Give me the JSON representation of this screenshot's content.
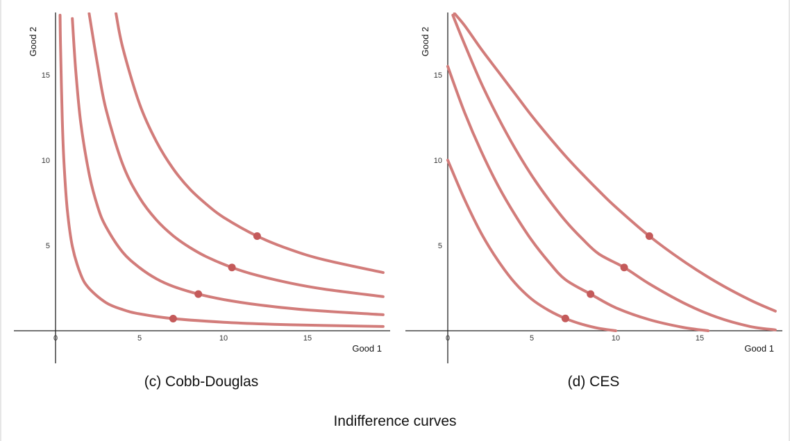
{
  "figure": {
    "caption": "Indifference curves"
  },
  "colors": {
    "curve": "#d27c7a",
    "point": "#c45a5a",
    "axis": "#222222"
  },
  "chart_data": [
    {
      "type": "line",
      "subcaption": "(c) Cobb-Douglas",
      "xlabel": "Good 1",
      "ylabel": "Good 2",
      "xlim": [
        -2.5,
        19.5
      ],
      "ylim": [
        -2,
        18.5
      ],
      "xticks": [
        0,
        5,
        10,
        15
      ],
      "yticks": [
        5,
        10,
        15
      ],
      "xtick_labels": [
        "0",
        "5",
        "10",
        "15"
      ],
      "ytick_labels": [
        "5",
        "10",
        "15"
      ],
      "series": [
        {
          "points": [
            [
              0.27,
              18.5
            ],
            [
              0.3,
              16.5
            ],
            [
              0.4,
              12.4
            ],
            [
              0.5,
              9.9
            ],
            [
              0.7,
              7.1
            ],
            [
              1,
              4.95
            ],
            [
              1.5,
              3.3
            ],
            [
              2,
              2.48
            ],
            [
              3,
              1.65
            ],
            [
              4,
              1.24
            ],
            [
              5,
              0.99
            ],
            [
              7,
              0.71
            ],
            [
              10,
              0.5
            ],
            [
              13,
              0.38
            ],
            [
              16,
              0.31
            ],
            [
              19.5,
              0.25
            ]
          ],
          "marker": [
            7,
            0.71
          ]
        },
        {
          "points": [
            [
              1,
              18.3
            ],
            [
              1.2,
              15.3
            ],
            [
              1.5,
              12.2
            ],
            [
              2,
              9.2
            ],
            [
              2.5,
              7.3
            ],
            [
              3,
              6.1
            ],
            [
              4,
              4.6
            ],
            [
              5,
              3.7
            ],
            [
              6,
              3.05
            ],
            [
              7,
              2.6
            ],
            [
              8.5,
              2.15
            ],
            [
              10,
              1.83
            ],
            [
              12,
              1.53
            ],
            [
              15,
              1.22
            ],
            [
              19.5,
              0.94
            ]
          ],
          "marker": [
            8.5,
            2.15
          ]
        },
        {
          "points": [
            [
              2,
              18.6
            ],
            [
              2.5,
              15.6
            ],
            [
              3,
              13
            ],
            [
              4,
              9.75
            ],
            [
              5,
              7.8
            ],
            [
              6,
              6.5
            ],
            [
              7,
              5.57
            ],
            [
              8,
              4.88
            ],
            [
              9,
              4.33
            ],
            [
              10.5,
              3.71
            ],
            [
              12,
              3.25
            ],
            [
              14,
              2.79
            ],
            [
              16,
              2.44
            ],
            [
              19.5,
              2.0
            ]
          ],
          "marker": [
            10.5,
            3.71
          ]
        },
        {
          "points": [
            [
              3.6,
              18.6
            ],
            [
              4,
              16.6
            ],
            [
              5,
              13.3
            ],
            [
              6,
              11.1
            ],
            [
              7,
              9.5
            ],
            [
              8,
              8.3
            ],
            [
              9,
              7.4
            ],
            [
              10,
              6.65
            ],
            [
              12,
              5.55
            ],
            [
              14,
              4.75
            ],
            [
              16,
              4.16
            ],
            [
              19.5,
              3.41
            ]
          ],
          "marker": [
            12,
            5.55
          ]
        }
      ]
    },
    {
      "type": "line",
      "subcaption": "(d) CES",
      "xlabel": "Good 1",
      "ylabel": "Good 2",
      "xlim": [
        -2.5,
        19.5
      ],
      "ylim": [
        -2,
        18.5
      ],
      "xticks": [
        0,
        5,
        10,
        15
      ],
      "yticks": [
        5,
        10,
        15
      ],
      "xtick_labels": [
        "0",
        "5",
        "10",
        "15"
      ],
      "ytick_labels": [
        "5",
        "10",
        "15"
      ],
      "series": [
        {
          "points": [
            [
              0,
              10
            ],
            [
              1,
              7.7
            ],
            [
              2,
              5.7
            ],
            [
              3,
              4.1
            ],
            [
              4,
              2.8
            ],
            [
              5,
              1.85
            ],
            [
              6,
              1.2
            ],
            [
              7,
              0.72
            ],
            [
              8,
              0.38
            ],
            [
              9,
              0.14
            ],
            [
              10,
              0
            ]
          ],
          "marker": [
            7,
            0.72
          ]
        },
        {
          "points": [
            [
              0,
              15.5
            ],
            [
              1,
              12.8
            ],
            [
              2,
              10.5
            ],
            [
              3,
              8.5
            ],
            [
              4,
              6.8
            ],
            [
              5,
              5.3
            ],
            [
              6,
              4.05
            ],
            [
              7,
              3.0
            ],
            [
              8.5,
              2.15
            ],
            [
              10,
              1.35
            ],
            [
              12,
              0.65
            ],
            [
              14,
              0.2
            ],
            [
              15.5,
              0
            ]
          ],
          "marker": [
            8.5,
            2.15
          ]
        },
        {
          "points": [
            [
              0.3,
              18.5
            ],
            [
              1,
              16.8
            ],
            [
              2,
              14.5
            ],
            [
              3,
              12.5
            ],
            [
              4,
              10.7
            ],
            [
              5,
              9.1
            ],
            [
              6,
              7.7
            ],
            [
              7,
              6.45
            ],
            [
              8,
              5.4
            ],
            [
              9,
              4.5
            ],
            [
              10.5,
              3.71
            ],
            [
              12,
              2.75
            ],
            [
              14,
              1.65
            ],
            [
              16,
              0.8
            ],
            [
              18,
              0.25
            ],
            [
              19.5,
              0.05
            ]
          ],
          "marker": [
            10.5,
            3.71
          ]
        },
        {
          "points": [
            [
              0.4,
              18.6
            ],
            [
              1,
              17.9
            ],
            [
              2,
              16.5
            ],
            [
              3,
              15.2
            ],
            [
              4,
              13.9
            ],
            [
              5,
              12.6
            ],
            [
              6,
              11.4
            ],
            [
              7,
              10.25
            ],
            [
              8,
              9.2
            ],
            [
              9,
              8.2
            ],
            [
              10,
              7.25
            ],
            [
              12,
              5.55
            ],
            [
              14,
              4.1
            ],
            [
              16,
              2.85
            ],
            [
              18,
              1.8
            ],
            [
              19.5,
              1.15
            ]
          ],
          "marker": [
            12,
            5.55
          ]
        }
      ]
    }
  ]
}
